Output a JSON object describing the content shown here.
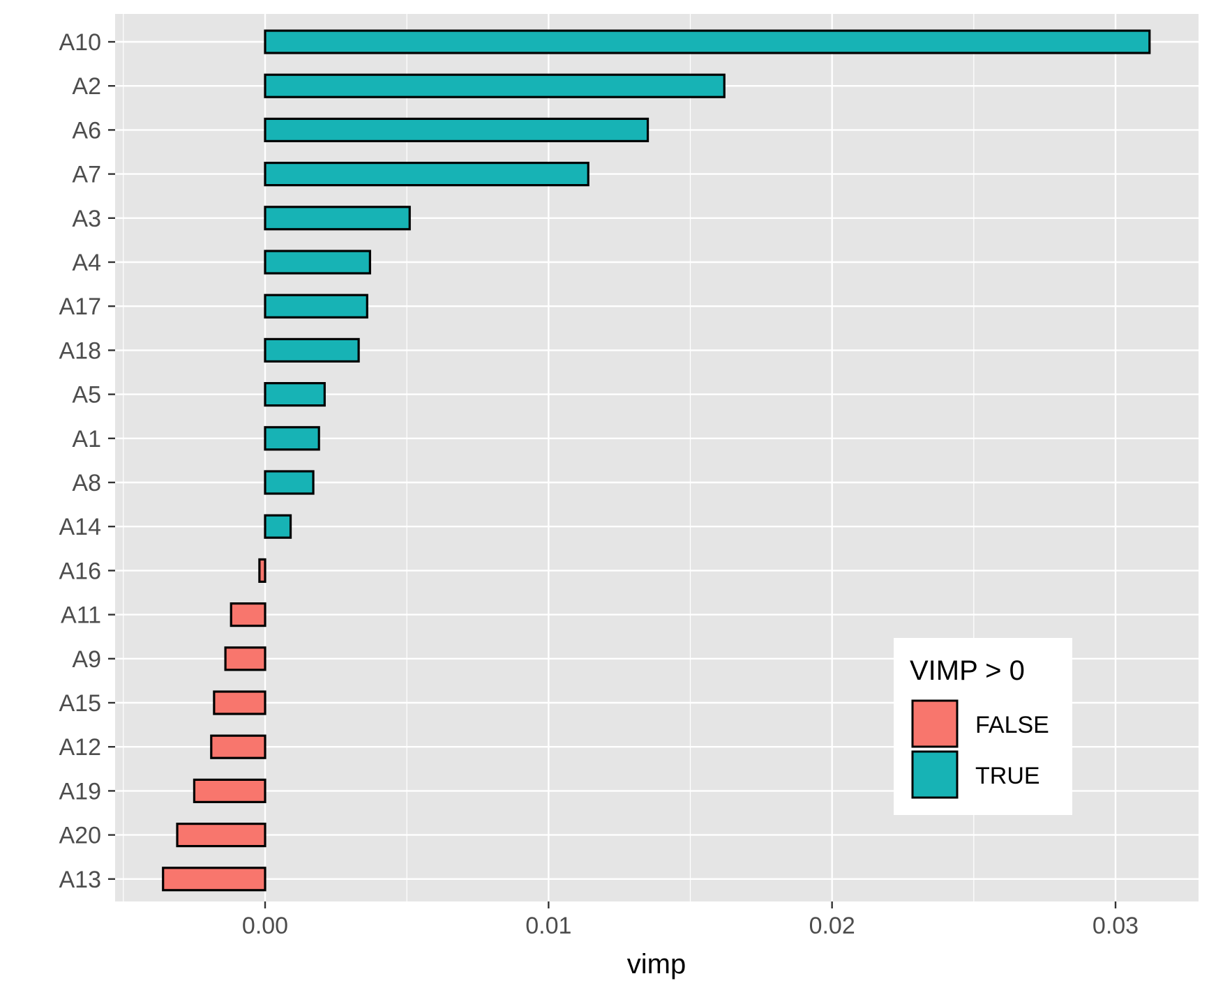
{
  "chart_data": {
    "type": "bar",
    "orientation": "horizontal",
    "categories": [
      "A10",
      "A2",
      "A6",
      "A7",
      "A3",
      "A4",
      "A17",
      "A18",
      "A5",
      "A1",
      "A8",
      "A14",
      "A16",
      "A11",
      "A9",
      "A15",
      "A12",
      "A19",
      "A20",
      "A13"
    ],
    "values": [
      0.0312,
      0.0162,
      0.0135,
      0.0114,
      0.0051,
      0.0037,
      0.0036,
      0.0033,
      0.0021,
      0.0019,
      0.0017,
      0.0009,
      -0.0002,
      -0.0012,
      -0.0014,
      -0.0018,
      -0.0019,
      -0.0025,
      -0.0031,
      -0.0036
    ],
    "xlabel": "vimp",
    "ylabel": "",
    "xlim": [
      -0.0052,
      0.0328
    ],
    "xticks": [
      0.0,
      0.01,
      0.02,
      0.03
    ],
    "xtick_labels": [
      "0.00",
      "0.01",
      "0.02",
      "0.03"
    ],
    "grid": true,
    "legend": {
      "title": "VIMP > 0",
      "position": "bottom-right inside",
      "entries": [
        {
          "label": "FALSE",
          "color": "#F8766D"
        },
        {
          "label": "TRUE",
          "color": "#00BFC4"
        }
      ]
    },
    "colors": {
      "false": "#F8766D",
      "true": "#17B3B5",
      "panel_background": "#E5E5E5",
      "grid": "#FFFFFF",
      "bar_outline": "#000000"
    }
  }
}
